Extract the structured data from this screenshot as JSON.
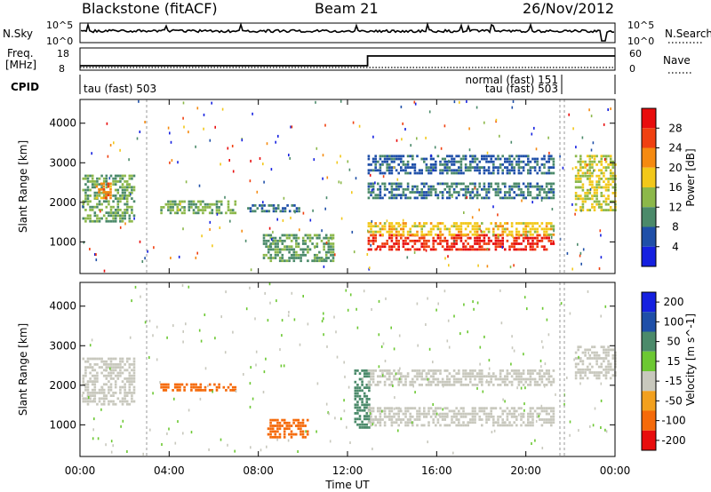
{
  "header": {
    "station": "Blackstone (fitACF)",
    "beam": "Beam 21",
    "date": "26/Nov/2012"
  },
  "panels": {
    "nsky": {
      "left_label": "N.Sky",
      "right_label": "N.Search",
      "left_ticks": [
        "10^5",
        "10^0"
      ],
      "right_ticks": [
        "10^5",
        "10^0"
      ]
    },
    "freq": {
      "left_label_1": "Freq.",
      "left_label_2": "[MHz]",
      "right_label": "Nave",
      "left_ticks": [
        "18",
        "8"
      ],
      "right_ticks": [
        "60",
        "0"
      ]
    },
    "cpid": {
      "label": "CPID",
      "segment_1": "tau (fast) 503",
      "segment_2_a": "normal (fast) 151",
      "segment_2_b": "tau (fast) 503"
    }
  },
  "colors": {
    "power": [
      "#1520e0",
      "#1f4fa8",
      "#4b8a6a",
      "#8cb84a",
      "#f2c81a",
      "#f58a10",
      "#f04010",
      "#e80d0d"
    ],
    "velocity": [
      "#1520e0",
      "#1f4fa8",
      "#4b8a6a",
      "#6cc832",
      "#c8c8bd",
      "#f2a01e",
      "#f56a0a",
      "#e80d0d"
    ],
    "grey_band": "#c8c8bd"
  },
  "chart_data": [
    {
      "type": "heatmap",
      "name": "power",
      "ylabel": "Slant Range [km]",
      "yticks": [
        "1000",
        "2000",
        "3000",
        "4000"
      ],
      "ylim": [
        200,
        4600
      ],
      "colorbar_label": "Power [dB]",
      "colorbar_ticks": [
        "4",
        "8",
        "12",
        "16",
        "20",
        "24",
        "28"
      ],
      "colorbar_range": [
        0,
        32
      ],
      "features": [
        {
          "t0": 0.1,
          "t1": 2.4,
          "r0": 1500,
          "r1": 2700,
          "level": 12
        },
        {
          "t0": 0.7,
          "t1": 1.4,
          "r0": 2100,
          "r1": 2500,
          "level": 22
        },
        {
          "t0": 3.6,
          "t1": 7.0,
          "r0": 1750,
          "r1": 2050,
          "level": 13
        },
        {
          "t0": 7.5,
          "t1": 9.8,
          "r0": 1750,
          "r1": 1950,
          "level": 8
        },
        {
          "t0": 8.2,
          "t1": 11.4,
          "r0": 550,
          "r1": 1200,
          "level": 11
        },
        {
          "t0": 12.9,
          "t1": 21.2,
          "r0": 800,
          "r1": 1200,
          "level": 28
        },
        {
          "t0": 12.9,
          "t1": 21.2,
          "r0": 1200,
          "r1": 1500,
          "level": 18
        },
        {
          "t0": 12.9,
          "t1": 21.2,
          "r0": 2100,
          "r1": 2500,
          "level": 9
        },
        {
          "t0": 12.9,
          "t1": 21.2,
          "r0": 2700,
          "r1": 3200,
          "level": 7
        },
        {
          "t0": 22.2,
          "t1": 24.0,
          "r0": 1800,
          "r1": 3200,
          "level": 16
        }
      ]
    },
    {
      "type": "heatmap",
      "name": "velocity",
      "ylabel": "Slant Range [km]",
      "yticks": [
        "1000",
        "2000",
        "3000",
        "4000"
      ],
      "ylim": [
        200,
        4600
      ],
      "xlabel": "Time UT",
      "xticks": [
        "00:00",
        "04:00",
        "08:00",
        "12:00",
        "16:00",
        "20:00",
        "00:00"
      ],
      "xlim": [
        0,
        24
      ],
      "colorbar_label": "Velocity [m s^-1]",
      "colorbar_ticks": [
        "200",
        "100",
        "50",
        "15",
        "-15",
        "-50",
        "-100",
        "-200"
      ],
      "features": [
        {
          "t0": 0.1,
          "t1": 2.4,
          "r0": 1500,
          "r1": 2700,
          "level": 0
        },
        {
          "t0": 3.6,
          "t1": 7.0,
          "r0": 1850,
          "r1": 2050,
          "level": -40
        },
        {
          "t0": 8.4,
          "t1": 10.2,
          "r0": 650,
          "r1": 1150,
          "level": -60
        },
        {
          "t0": 12.3,
          "t1": 13.0,
          "r0": 900,
          "r1": 2400,
          "level": 35
        },
        {
          "t0": 12.9,
          "t1": 21.2,
          "r0": 1000,
          "r1": 1450,
          "level": 0
        },
        {
          "t0": 12.9,
          "t1": 21.2,
          "r0": 2000,
          "r1": 2400,
          "level": 0
        },
        {
          "t0": 22.2,
          "t1": 24.0,
          "r0": 2200,
          "r1": 3000,
          "level": 0
        }
      ]
    }
  ]
}
